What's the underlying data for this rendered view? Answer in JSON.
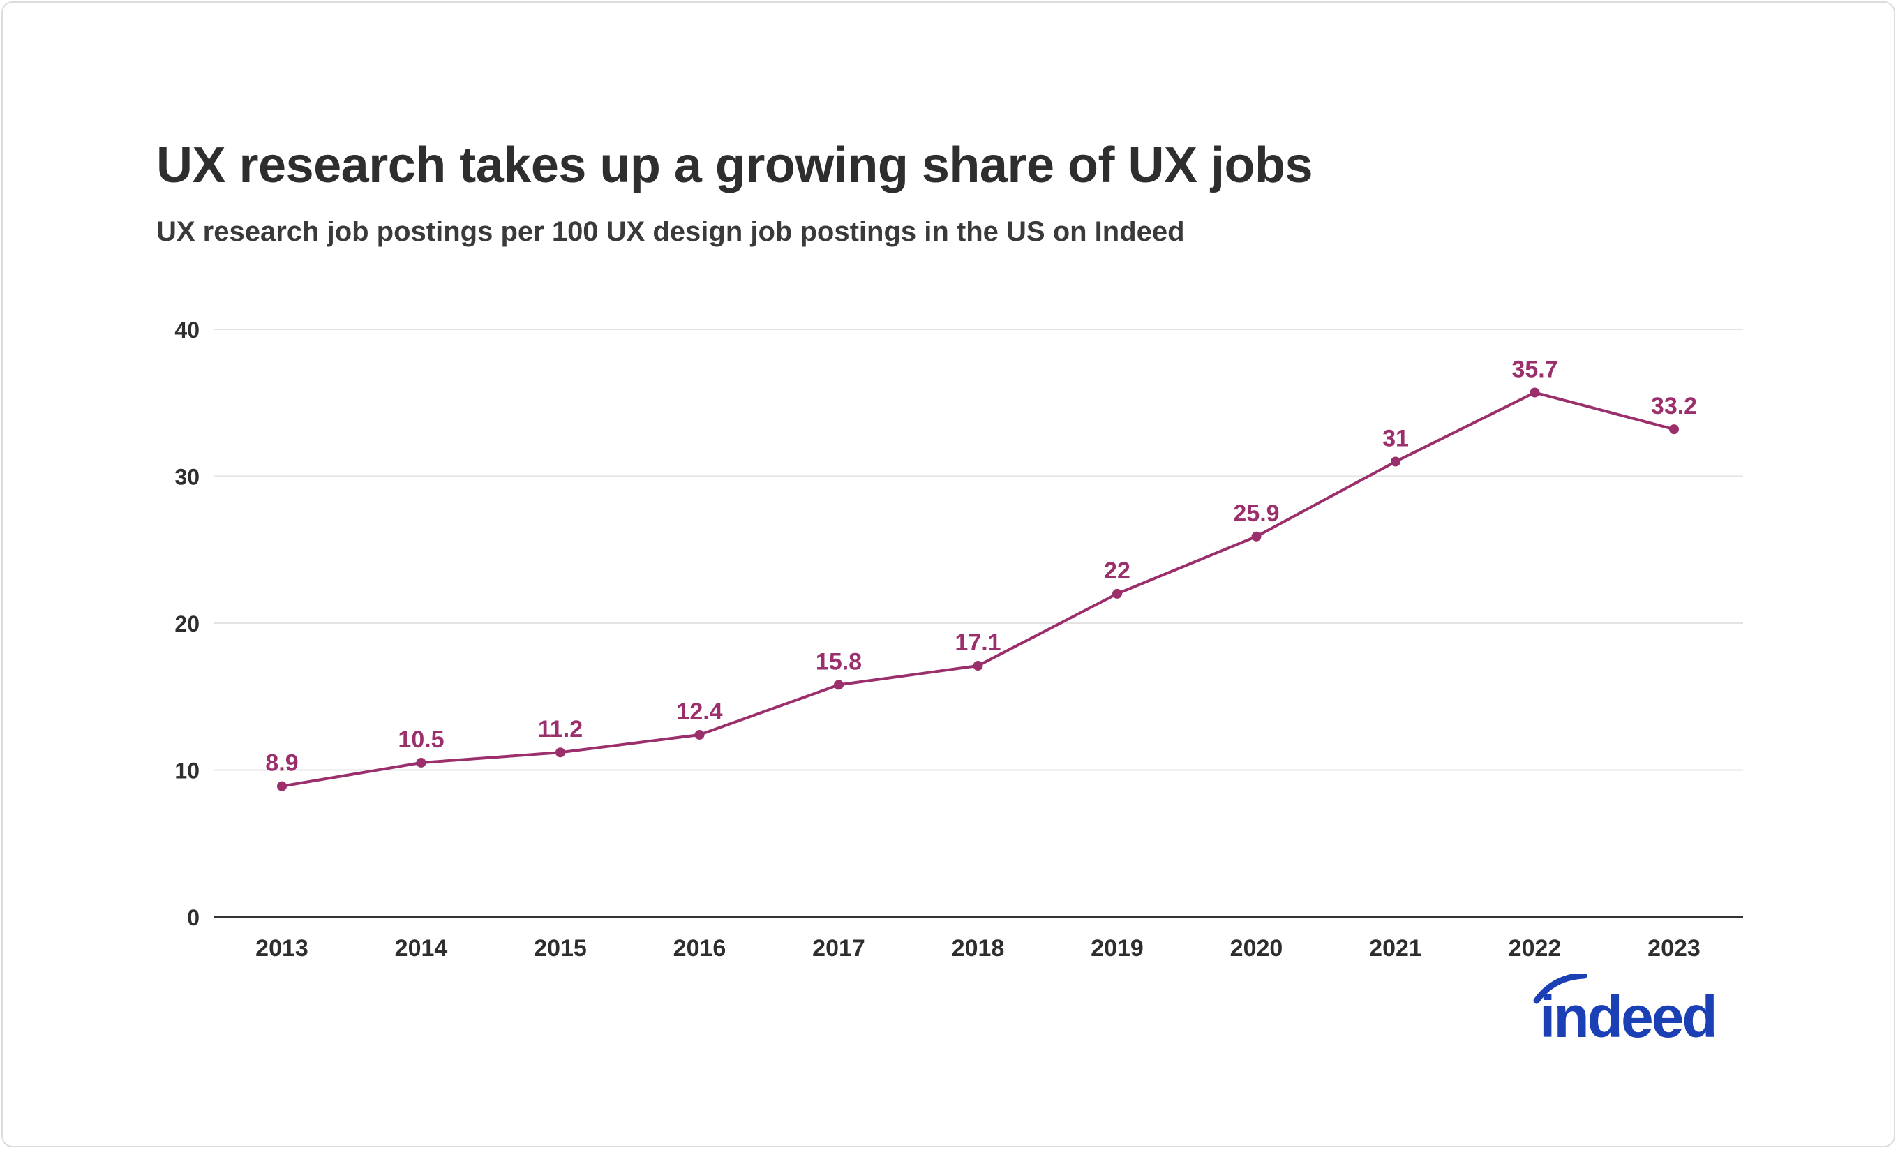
{
  "title": "UX research takes up a growing share of UX jobs",
  "subtitle": "UX research job postings per 100 UX design job postings in the US on Indeed",
  "logo": {
    "text": "indeed",
    "color": "#1b3fb5"
  },
  "chart_data": {
    "type": "line",
    "title": "UX research takes up a growing share of UX jobs",
    "subtitle": "UX research job postings per 100 UX design job postings in the US on Indeed",
    "categories": [
      "2013",
      "2014",
      "2015",
      "2016",
      "2017",
      "2018",
      "2019",
      "2020",
      "2021",
      "2022",
      "2023"
    ],
    "series": [
      {
        "values": [
          8.9,
          10.5,
          11.2,
          12.4,
          15.8,
          17.1,
          22,
          25.9,
          31,
          35.7,
          33.2
        ],
        "color": "#9b2f6c"
      }
    ],
    "data_labels": [
      "8.9",
      "10.5",
      "11.2",
      "12.4",
      "15.8",
      "17.1",
      "22",
      "25.9",
      "31",
      "35.7",
      "33.2"
    ],
    "ylim": [
      0,
      40
    ],
    "yticks": [
      "0",
      "10",
      "20",
      "30",
      "40"
    ],
    "grid": true,
    "xlabel": "",
    "ylabel": ""
  }
}
